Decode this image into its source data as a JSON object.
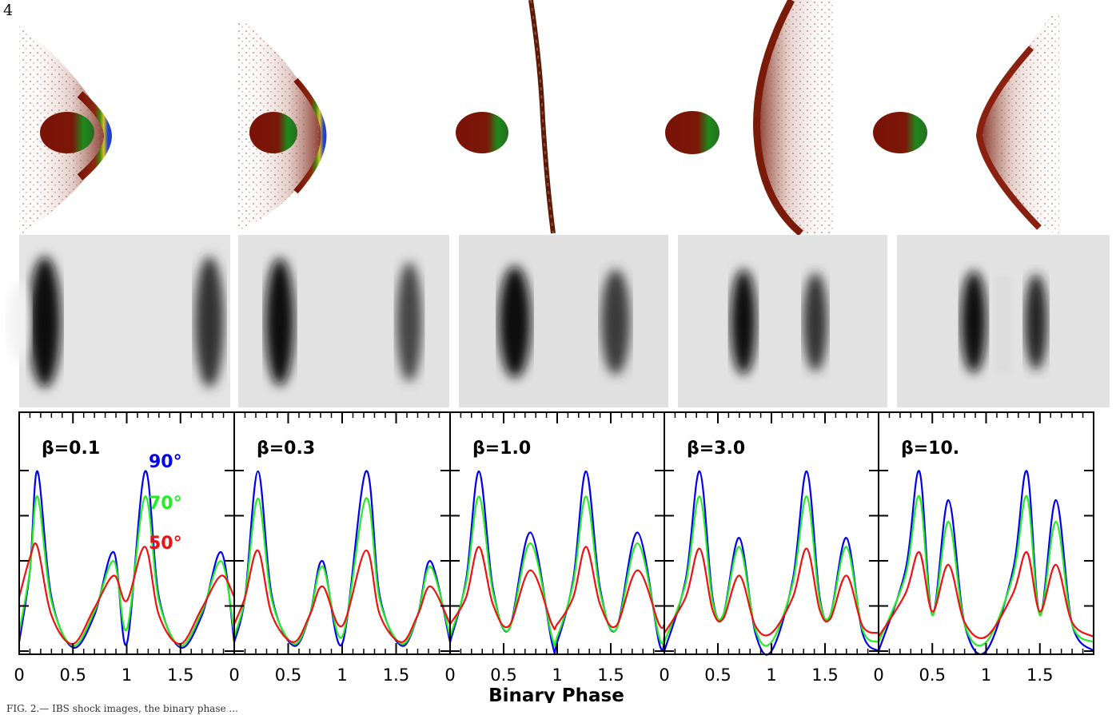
{
  "page_number": "4",
  "caption_start": "FIG. 2.— IBS shock images, the binary phase ...",
  "colors": {
    "inc_90": "#0000ee",
    "inc_70": "#22ee22",
    "inc_50": "#ee1111",
    "frame": "#000000",
    "dark_red": "#7a1208"
  },
  "panel_images": {
    "top_row": "IBS shock surface renderings (color)",
    "middle_row": "grayscale emission maps"
  },
  "chart_data": {
    "type": "line",
    "xlabel": "Binary Phase",
    "ylabel": "",
    "shared_x_ticks": [
      "0",
      "0.5",
      "1",
      "1.5"
    ],
    "xlim": [
      0,
      2
    ],
    "ylim": [
      0,
      1
    ],
    "panels": [
      {
        "beta_label": "β=0.1",
        "annotations": [
          "90°",
          "70°",
          "50°"
        ],
        "series": [
          {
            "name": "90°",
            "x": [
              0.0,
              0.1,
              0.17,
              0.3,
              0.5,
              0.7,
              0.88,
              1.0,
              1.17,
              1.3,
              1.5,
              1.7,
              1.88,
              2.0
            ],
            "y": [
              0.05,
              0.45,
              1.0,
              0.3,
              0.02,
              0.2,
              0.55,
              0.04,
              1.0,
              0.3,
              0.02,
              0.2,
              0.55,
              0.05
            ]
          },
          {
            "name": "70°",
            "x": [
              0.0,
              0.1,
              0.17,
              0.3,
              0.5,
              0.7,
              0.88,
              1.0,
              1.17,
              1.3,
              1.5,
              1.7,
              1.88,
              2.0
            ],
            "y": [
              0.1,
              0.45,
              0.86,
              0.28,
              0.03,
              0.22,
              0.5,
              0.12,
              0.86,
              0.28,
              0.03,
              0.22,
              0.5,
              0.1
            ]
          },
          {
            "name": "50°",
            "x": [
              0.0,
              0.1,
              0.17,
              0.3,
              0.5,
              0.7,
              0.88,
              1.0,
              1.17,
              1.3,
              1.5,
              1.7,
              1.88,
              2.0
            ],
            "y": [
              0.3,
              0.52,
              0.58,
              0.2,
              0.04,
              0.24,
              0.42,
              0.28,
              0.58,
              0.2,
              0.04,
              0.24,
              0.42,
              0.3
            ]
          }
        ]
      },
      {
        "beta_label": "β=0.3",
        "annotations": [],
        "series": [
          {
            "name": "90°",
            "x": [
              0.0,
              0.1,
              0.22,
              0.35,
              0.55,
              0.7,
              0.82,
              1.0,
              1.22,
              1.35,
              1.55,
              1.7,
              1.82,
              2.0
            ],
            "y": [
              0.05,
              0.3,
              1.0,
              0.3,
              0.03,
              0.2,
              0.5,
              0.04,
              1.0,
              0.3,
              0.03,
              0.2,
              0.5,
              0.05
            ]
          },
          {
            "name": "70°",
            "x": [
              0.0,
              0.1,
              0.22,
              0.35,
              0.55,
              0.7,
              0.82,
              1.0,
              1.22,
              1.35,
              1.55,
              1.7,
              1.82,
              2.0
            ],
            "y": [
              0.08,
              0.3,
              0.85,
              0.28,
              0.04,
              0.2,
              0.47,
              0.08,
              0.85,
              0.28,
              0.04,
              0.2,
              0.47,
              0.08
            ]
          },
          {
            "name": "50°",
            "x": [
              0.0,
              0.1,
              0.22,
              0.35,
              0.55,
              0.7,
              0.82,
              1.0,
              1.22,
              1.35,
              1.55,
              1.7,
              1.82,
              2.0
            ],
            "y": [
              0.15,
              0.3,
              0.56,
              0.2,
              0.05,
              0.2,
              0.36,
              0.14,
              0.56,
              0.2,
              0.05,
              0.2,
              0.36,
              0.15
            ]
          }
        ]
      },
      {
        "beta_label": "β=1.0",
        "annotations": [],
        "series": [
          {
            "name": "90°",
            "x": [
              0.0,
              0.15,
              0.27,
              0.4,
              0.55,
              0.75,
              0.95,
              1.0,
              1.15,
              1.27,
              1.4,
              1.55,
              1.75,
              1.95,
              2.0
            ],
            "y": [
              0.05,
              0.4,
              1.0,
              0.35,
              0.12,
              0.66,
              0.05,
              0.05,
              0.4,
              1.0,
              0.35,
              0.12,
              0.66,
              0.05,
              0.05
            ]
          },
          {
            "name": "70°",
            "x": [
              0.0,
              0.15,
              0.27,
              0.4,
              0.55,
              0.75,
              0.95,
              1.0,
              1.15,
              1.27,
              1.4,
              1.55,
              1.75,
              1.95,
              2.0
            ],
            "y": [
              0.08,
              0.38,
              0.86,
              0.33,
              0.12,
              0.6,
              0.08,
              0.08,
              0.38,
              0.86,
              0.33,
              0.12,
              0.6,
              0.08,
              0.08
            ]
          },
          {
            "name": "50°",
            "x": [
              0.0,
              0.15,
              0.27,
              0.4,
              0.55,
              0.75,
              0.95,
              1.0,
              1.15,
              1.27,
              1.4,
              1.55,
              1.75,
              1.95,
              2.0
            ],
            "y": [
              0.15,
              0.3,
              0.58,
              0.26,
              0.14,
              0.45,
              0.15,
              0.15,
              0.3,
              0.58,
              0.26,
              0.14,
              0.45,
              0.15,
              0.15
            ]
          }
        ]
      },
      {
        "beta_label": "β=3.0",
        "annotations": [],
        "series": [
          {
            "name": "90°",
            "x": [
              0.0,
              0.2,
              0.33,
              0.45,
              0.55,
              0.7,
              0.85,
              1.0,
              1.2,
              1.33,
              1.45,
              1.55,
              1.7,
              1.85,
              2.0
            ],
            "y": [
              0.0,
              0.4,
              1.0,
              0.3,
              0.2,
              0.63,
              0.1,
              0.0,
              0.4,
              1.0,
              0.3,
              0.2,
              0.63,
              0.1,
              0.0
            ]
          },
          {
            "name": "70°",
            "x": [
              0.0,
              0.2,
              0.33,
              0.45,
              0.55,
              0.7,
              0.85,
              1.0,
              1.2,
              1.33,
              1.45,
              1.55,
              1.7,
              1.85,
              2.0
            ],
            "y": [
              0.05,
              0.38,
              0.86,
              0.28,
              0.2,
              0.58,
              0.12,
              0.05,
              0.38,
              0.86,
              0.28,
              0.2,
              0.58,
              0.12,
              0.05
            ]
          },
          {
            "name": "50°",
            "x": [
              0.0,
              0.2,
              0.33,
              0.45,
              0.55,
              0.7,
              0.85,
              1.0,
              1.2,
              1.33,
              1.45,
              1.55,
              1.7,
              1.85,
              2.0
            ],
            "y": [
              0.1,
              0.3,
              0.57,
              0.23,
              0.18,
              0.42,
              0.14,
              0.1,
              0.3,
              0.57,
              0.23,
              0.18,
              0.42,
              0.14,
              0.1
            ]
          }
        ]
      },
      {
        "beta_label": "β=10.",
        "annotations": [],
        "series": [
          {
            "name": "90°",
            "x": [
              0.0,
              0.25,
              0.38,
              0.5,
              0.65,
              0.8,
              1.0,
              1.25,
              1.38,
              1.5,
              1.65,
              1.8,
              2.0
            ],
            "y": [
              0.0,
              0.45,
              1.0,
              0.2,
              0.84,
              0.15,
              0.0,
              0.45,
              1.0,
              0.2,
              0.84,
              0.15,
              0.0
            ]
          },
          {
            "name": "70°",
            "x": [
              0.0,
              0.25,
              0.38,
              0.5,
              0.65,
              0.8,
              1.0,
              1.25,
              1.38,
              1.5,
              1.65,
              1.8,
              2.0
            ],
            "y": [
              0.05,
              0.42,
              0.86,
              0.2,
              0.72,
              0.15,
              0.05,
              0.42,
              0.86,
              0.2,
              0.72,
              0.15,
              0.05
            ]
          },
          {
            "name": "50°",
            "x": [
              0.0,
              0.25,
              0.38,
              0.5,
              0.65,
              0.8,
              1.0,
              1.25,
              1.38,
              1.5,
              1.65,
              1.8,
              2.0
            ],
            "y": [
              0.08,
              0.32,
              0.55,
              0.22,
              0.48,
              0.16,
              0.08,
              0.32,
              0.55,
              0.22,
              0.48,
              0.16,
              0.08
            ]
          }
        ]
      }
    ]
  }
}
